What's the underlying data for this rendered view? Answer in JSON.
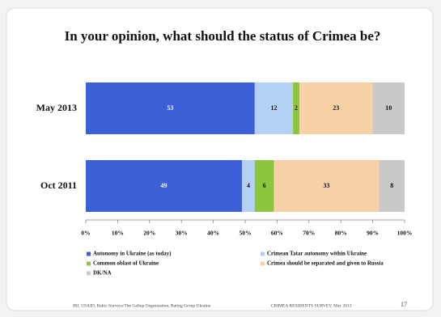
{
  "chart_data": {
    "type": "stacked-bar-horizontal",
    "title": "In your opinion, what should the status of Crimea be?",
    "categories": [
      "May 2013",
      "Oct 2011"
    ],
    "series": [
      {
        "name": "Autonomy in Ukraine (as today)",
        "color": "#3b60d8",
        "values": [
          53,
          49
        ]
      },
      {
        "name": "Crimean Tatar autonomy within Ukraine",
        "color": "#b5d0f5",
        "values": [
          12,
          4
        ]
      },
      {
        "name": "Common oblast of Ukraine",
        "color": "#8cc63e",
        "values": [
          2,
          6
        ]
      },
      {
        "name": "Crimea should be separated and given to Russia",
        "color": "#f8d2a6",
        "values": [
          23,
          33
        ]
      },
      {
        "name": "DK/NA",
        "color": "#c9c9c9",
        "values": [
          10,
          8
        ]
      }
    ],
    "xlim": [
      0,
      100
    ],
    "xticks": [
      {
        "value": 0,
        "label": "0%"
      },
      {
        "value": 10,
        "label": "10%"
      },
      {
        "value": 20,
        "label": "20%"
      },
      {
        "value": 30,
        "label": "30%"
      },
      {
        "value": 40,
        "label": "40%"
      },
      {
        "value": 50,
        "label": "50%"
      },
      {
        "value": 60,
        "label": "60%"
      },
      {
        "value": 70,
        "label": "70%"
      },
      {
        "value": 80,
        "label": "80%"
      },
      {
        "value": 90,
        "label": "90%"
      },
      {
        "value": 100,
        "label": "100%"
      }
    ]
  },
  "footer": {
    "source": "IRI, USAID, Baltic Surveys/The Gallup Organization, Rating Group Ukraine",
    "survey": "CRIMEA RESIDENTS SURVEY, May 2013",
    "page": "17"
  }
}
